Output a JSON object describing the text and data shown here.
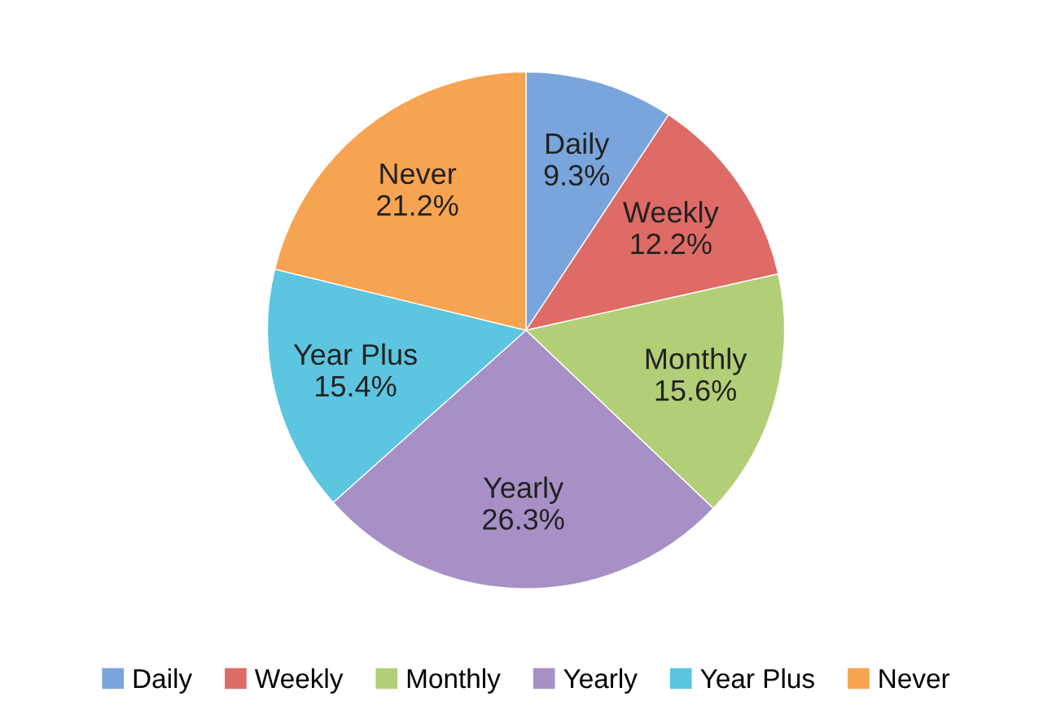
{
  "chart_data": {
    "type": "pie",
    "categories": [
      "Daily",
      "Weekly",
      "Monthly",
      "Yearly",
      "Year Plus",
      "Never"
    ],
    "values": [
      9.3,
      12.2,
      15.6,
      26.3,
      15.4,
      21.2
    ],
    "value_labels": [
      "9.3%",
      "12.2%",
      "15.6%",
      "26.3%",
      "15.4%",
      "21.2%"
    ],
    "colors": [
      "#7aa5dc",
      "#de6b66",
      "#b2cf78",
      "#a690c6",
      "#5cc5df",
      "#f7a452"
    ],
    "legend": "bottom"
  }
}
